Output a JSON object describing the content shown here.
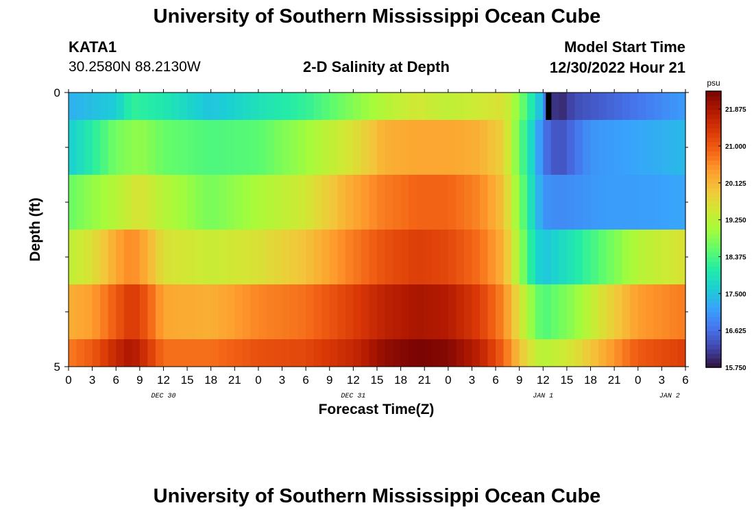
{
  "page": {
    "title": "University of Southern Mississippi Ocean Cube",
    "repeat_title": "University of Southern Mississippi Ocean Cube"
  },
  "station": {
    "name": "KATA1",
    "coords": "30.2580N  88.2130W"
  },
  "model": {
    "label": "Model Start Time",
    "value": "12/30/2022 Hour 21"
  },
  "chart_data": {
    "type": "heatmap",
    "title": "2-D Salinity at Depth",
    "xlabel": "Forecast Time(Z)",
    "ylabel": "Depth (ft)",
    "x_unit": "hours since 12/30 00Z",
    "xlim": [
      0,
      78
    ],
    "ylim": [
      0,
      5
    ],
    "x_ticks": [
      0,
      3,
      6,
      9,
      12,
      15,
      18,
      21,
      24,
      27,
      30,
      33,
      36,
      39,
      42,
      45,
      48,
      51,
      54,
      57,
      60,
      63,
      66,
      69,
      72,
      75,
      78
    ],
    "x_tick_labels": [
      "0",
      "3",
      "6",
      "9",
      "12",
      "15",
      "18",
      "21",
      "0",
      "3",
      "6",
      "9",
      "12",
      "15",
      "18",
      "21",
      "0",
      "3",
      "6",
      "9",
      "12",
      "15",
      "18",
      "21",
      "0",
      "3",
      "6"
    ],
    "y_tick_labels": [
      {
        "value": 0,
        "label": "0"
      },
      {
        "value": 5,
        "label": "5"
      }
    ],
    "y_minor_ticks": [
      1,
      2,
      3,
      4
    ],
    "day_labels": [
      {
        "x": 12,
        "label": "DEC 30"
      },
      {
        "x": 36,
        "label": "DEC 31"
      },
      {
        "x": 60,
        "label": "JAN 1"
      },
      {
        "x": 76,
        "label": "JAN 2"
      }
    ],
    "colorbar": {
      "unit": "psu",
      "min": 15.75,
      "max": 22.3,
      "ticks": [
        21.875,
        21.0,
        20.125,
        19.25,
        18.375,
        17.5,
        16.625,
        15.75
      ],
      "tick_labels": [
        "21.875",
        "21.000",
        "20.125",
        "19.250",
        "18.375",
        "17.500",
        "16.625",
        "15.750"
      ],
      "colors": [
        "#30123b",
        "#4145ab",
        "#4675ed",
        "#39a2fc",
        "#1bcfd4",
        "#24eca6",
        "#61fc6c",
        "#a4fc3b",
        "#d1e834",
        "#f3c63a",
        "#fe9b2d",
        "#f36315",
        "#d93806",
        "#b11901",
        "#7a0402"
      ]
    },
    "layers": [
      {
        "depth_range": [
          0,
          0.5
        ],
        "keys": [
          [
            0,
            17.3
          ],
          [
            6,
            17.6
          ],
          [
            8,
            18.2
          ],
          [
            12,
            18.0
          ],
          [
            18,
            17.5
          ],
          [
            24,
            17.9
          ],
          [
            30,
            18.2
          ],
          [
            36,
            18.8
          ],
          [
            40,
            19.2
          ],
          [
            44,
            19.5
          ],
          [
            48,
            19.3
          ],
          [
            55,
            19.6
          ],
          [
            57,
            18.8
          ],
          [
            59,
            17.8
          ],
          [
            60,
            17.2
          ],
          [
            61,
            16.2
          ],
          [
            62,
            15.9
          ],
          [
            64,
            16.3
          ],
          [
            72,
            16.7
          ],
          [
            78,
            17.1
          ]
        ],
        "black_mark_x": 60.7
      },
      {
        "depth_range": [
          0.5,
          1.5
        ],
        "keys": [
          [
            0,
            17.6
          ],
          [
            3,
            18.1
          ],
          [
            6,
            18.7
          ],
          [
            9,
            18.9
          ],
          [
            12,
            18.6
          ],
          [
            18,
            18.4
          ],
          [
            24,
            18.5
          ],
          [
            30,
            19.0
          ],
          [
            36,
            19.6
          ],
          [
            40,
            20.2
          ],
          [
            44,
            20.3
          ],
          [
            48,
            20.3
          ],
          [
            52,
            20.2
          ],
          [
            55,
            19.8
          ],
          [
            57,
            18.6
          ],
          [
            59,
            17.5
          ],
          [
            60,
            16.7
          ],
          [
            62,
            16.3
          ],
          [
            66,
            17.0
          ],
          [
            72,
            17.2
          ],
          [
            78,
            17.4
          ]
        ]
      },
      {
        "depth_range": [
          1.5,
          2.5
        ],
        "keys": [
          [
            0,
            18.6
          ],
          [
            3,
            18.9
          ],
          [
            6,
            19.2
          ],
          [
            9,
            19.6
          ],
          [
            12,
            19.2
          ],
          [
            18,
            18.7
          ],
          [
            24,
            19.1
          ],
          [
            30,
            19.5
          ],
          [
            36,
            20.3
          ],
          [
            40,
            20.7
          ],
          [
            44,
            20.9
          ],
          [
            48,
            20.9
          ],
          [
            52,
            20.6
          ],
          [
            55,
            20.0
          ],
          [
            57,
            18.8
          ],
          [
            59,
            17.6
          ],
          [
            60,
            17.0
          ],
          [
            62,
            16.9
          ],
          [
            68,
            17.1
          ],
          [
            72,
            17.1
          ],
          [
            78,
            17.2
          ]
        ]
      },
      {
        "depth_range": [
          2.5,
          3.5
        ],
        "keys": [
          [
            0,
            19.3
          ],
          [
            3,
            19.6
          ],
          [
            6,
            20.3
          ],
          [
            8,
            20.6
          ],
          [
            10,
            20.2
          ],
          [
            12,
            19.6
          ],
          [
            18,
            19.4
          ],
          [
            24,
            19.6
          ],
          [
            30,
            20.0
          ],
          [
            36,
            20.7
          ],
          [
            40,
            21.1
          ],
          [
            44,
            21.3
          ],
          [
            48,
            21.2
          ],
          [
            52,
            20.8
          ],
          [
            55,
            20.2
          ],
          [
            57,
            19.0
          ],
          [
            59,
            17.8
          ],
          [
            60,
            17.5
          ],
          [
            64,
            18.0
          ],
          [
            68,
            18.6
          ],
          [
            72,
            19.2
          ],
          [
            78,
            19.6
          ]
        ]
      },
      {
        "depth_range": [
          3.5,
          4.5
        ],
        "keys": [
          [
            0,
            20.2
          ],
          [
            3,
            20.4
          ],
          [
            6,
            21.0
          ],
          [
            8,
            21.4
          ],
          [
            10,
            21.0
          ],
          [
            12,
            20.3
          ],
          [
            18,
            20.2
          ],
          [
            24,
            20.6
          ],
          [
            30,
            20.8
          ],
          [
            36,
            21.3
          ],
          [
            40,
            21.7
          ],
          [
            44,
            21.9
          ],
          [
            48,
            21.8
          ],
          [
            52,
            21.3
          ],
          [
            55,
            20.6
          ],
          [
            57,
            19.6
          ],
          [
            59,
            18.7
          ],
          [
            60,
            18.4
          ],
          [
            64,
            18.9
          ],
          [
            68,
            19.7
          ],
          [
            72,
            20.4
          ],
          [
            78,
            20.7
          ]
        ]
      },
      {
        "depth_range": [
          4.5,
          5
        ],
        "keys": [
          [
            0,
            20.7
          ],
          [
            3,
            21.0
          ],
          [
            6,
            21.6
          ],
          [
            8,
            21.9
          ],
          [
            10,
            21.4
          ],
          [
            12,
            20.8
          ],
          [
            18,
            20.8
          ],
          [
            24,
            21.1
          ],
          [
            30,
            21.2
          ],
          [
            36,
            21.6
          ],
          [
            40,
            22.1
          ],
          [
            44,
            22.3
          ],
          [
            48,
            22.2
          ],
          [
            52,
            21.7
          ],
          [
            55,
            20.9
          ],
          [
            57,
            20.0
          ],
          [
            59,
            19.4
          ],
          [
            60,
            19.2
          ],
          [
            64,
            19.6
          ],
          [
            68,
            20.3
          ],
          [
            72,
            21.0
          ],
          [
            78,
            21.3
          ]
        ]
      }
    ]
  }
}
